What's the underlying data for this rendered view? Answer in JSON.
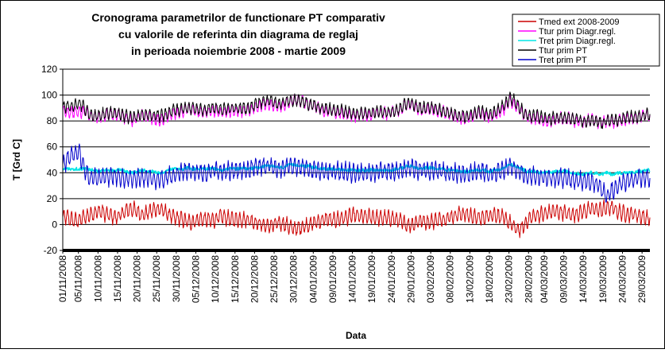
{
  "chart_data": {
    "type": "line",
    "title_lines": [
      "Cronograma parametrilor de functionare PT comparativ",
      "cu valorile de referinta din diagrama de reglaj",
      "in perioada noiembrie 2008 - martie 2009"
    ],
    "xlabel": "Data",
    "ylabel": "T [Grd C]",
    "ylim": [
      -20,
      120
    ],
    "yticks": [
      "120",
      "100",
      "80",
      "60",
      "40",
      "20",
      "0",
      "-20"
    ],
    "ytick_values": [
      120,
      100,
      80,
      60,
      40,
      20,
      0,
      -20
    ],
    "gridlines": [
      0,
      20,
      40,
      60,
      80,
      100,
      120
    ],
    "xticks": [
      "01/11/2008",
      "05/11/2008",
      "10/11/2008",
      "15/11/2008",
      "20/11/2008",
      "25/11/2008",
      "30/11/2008",
      "05/12/2008",
      "10/12/2008",
      "15/12/2008",
      "20/12/2008",
      "25/12/2008",
      "30/12/2008",
      "04/01/2009",
      "09/01/2009",
      "14/01/2009",
      "19/01/2009",
      "24/01/2009",
      "29/01/2009",
      "03/02/2009",
      "08/02/2009",
      "13/02/2009",
      "18/02/2009",
      "23/02/2009",
      "28/02/2009",
      "04/03/2009",
      "09/03/2009",
      "14/03/2009",
      "19/03/2009",
      "24/03/2009",
      "29/03/2009"
    ],
    "xtick_days": [
      0,
      4,
      9,
      14,
      19,
      24,
      29,
      34,
      39,
      44,
      49,
      54,
      59,
      64,
      69,
      74,
      79,
      84,
      89,
      94,
      99,
      104,
      109,
      114,
      119,
      123,
      128,
      133,
      138,
      143,
      148
    ],
    "day_count": 151,
    "legend_position": "top-right",
    "series": [
      {
        "name": "Tmed ext 2008-2009",
        "color": "#cc0000",
        "daily_avg": [
          5,
          6,
          4,
          3,
          3,
          5,
          6,
          8,
          9,
          10,
          10,
          8,
          7,
          6,
          6,
          8,
          10,
          12,
          12,
          10,
          8,
          8,
          10,
          11,
          12,
          12,
          10,
          8,
          6,
          5,
          5,
          3,
          2,
          2,
          3,
          4,
          4,
          4,
          3,
          4,
          6,
          6,
          5,
          4,
          4,
          4,
          4,
          4,
          3,
          2,
          1,
          0,
          -1,
          -1,
          0,
          1,
          1,
          0,
          -2,
          -3,
          -3,
          -2,
          -1,
          0,
          1,
          2,
          3,
          4,
          4,
          3,
          4,
          5,
          5,
          6,
          7,
          7,
          6,
          6,
          6,
          6,
          5,
          5,
          5,
          5,
          5,
          4,
          3,
          1,
          0,
          0,
          1,
          3,
          3,
          2,
          2,
          3,
          4,
          4,
          5,
          6,
          7,
          8,
          8,
          8,
          7,
          6,
          5,
          5,
          6,
          7,
          8,
          7,
          6,
          4,
          2,
          -1,
          -4,
          -4,
          0,
          4,
          6,
          7,
          8,
          8,
          9,
          10,
          10,
          10,
          9,
          8,
          8,
          8,
          9,
          10,
          11,
          12,
          12,
          11,
          12,
          13,
          13,
          12,
          10,
          9,
          8,
          8,
          8,
          7,
          6,
          5,
          5
        ]
      },
      {
        "name": "Ttur prim Diagr.regl.",
        "color": "#ff00ff",
        "daily_avg": [
          87,
          87,
          87,
          87,
          87,
          87,
          87,
          84,
          84,
          83,
          84,
          85,
          85,
          85,
          85,
          84,
          82,
          81,
          81,
          82,
          84,
          84,
          83,
          82,
          81,
          81,
          82,
          84,
          86,
          86,
          87,
          88,
          89,
          88,
          87,
          87,
          87,
          87,
          88,
          88,
          86,
          86,
          87,
          88,
          88,
          88,
          88,
          88,
          89,
          90,
          91,
          93,
          93,
          93,
          92,
          91,
          92,
          93,
          95,
          96,
          96,
          95,
          94,
          92,
          91,
          90,
          89,
          88,
          87,
          88,
          87,
          86,
          86,
          85,
          84,
          84,
          85,
          85,
          84,
          85,
          86,
          86,
          86,
          86,
          86,
          87,
          88,
          91,
          93,
          93,
          91,
          89,
          88,
          89,
          90,
          88,
          87,
          87,
          86,
          85,
          84,
          83,
          82,
          82,
          83,
          84,
          86,
          85,
          84,
          83,
          84,
          86,
          88,
          90,
          95,
          95,
          91,
          87,
          84,
          83,
          82,
          82,
          81,
          80,
          80,
          80,
          81,
          82,
          82,
          82,
          81,
          80,
          79,
          79,
          80,
          81,
          80,
          79,
          79,
          80,
          79,
          79,
          80,
          81,
          82,
          82,
          82,
          83,
          84,
          85,
          85
        ]
      },
      {
        "name": "Tret prim Diagr.regl.",
        "color": "#00e5e5",
        "daily_avg": [
          43,
          43,
          43,
          43,
          43,
          43,
          43,
          42,
          42,
          41,
          42,
          42,
          42,
          42,
          42,
          42,
          41,
          40,
          40,
          41,
          42,
          42,
          41,
          41,
          40,
          40,
          41,
          42,
          43,
          43,
          43,
          43,
          44,
          43,
          43,
          43,
          43,
          43,
          43,
          43,
          42,
          42,
          43,
          43,
          43,
          43,
          43,
          43,
          43,
          44,
          44,
          45,
          45,
          45,
          45,
          44,
          44,
          45,
          46,
          46,
          46,
          46,
          45,
          45,
          44,
          44,
          43,
          43,
          43,
          43,
          43,
          42,
          42,
          42,
          42,
          42,
          42,
          42,
          42,
          42,
          42,
          42,
          42,
          42,
          42,
          43,
          43,
          44,
          45,
          45,
          44,
          43,
          43,
          44,
          44,
          43,
          43,
          43,
          42,
          42,
          42,
          41,
          41,
          41,
          41,
          42,
          42,
          42,
          42,
          41,
          42,
          42,
          43,
          44,
          46,
          46,
          44,
          43,
          42,
          41,
          41,
          41,
          40,
          40,
          40,
          40,
          41,
          41,
          41,
          41,
          40,
          40,
          39,
          39,
          40,
          40,
          40,
          39,
          39,
          40,
          39,
          39,
          40,
          40,
          40,
          40,
          40,
          41,
          41,
          42,
          42
        ]
      },
      {
        "name": "Ttur prim PT",
        "color": "#000000",
        "daily_avg": [
          90,
          92,
          91,
          92,
          94,
          92,
          88,
          85,
          84,
          84,
          85,
          86,
          86,
          86,
          86,
          85,
          84,
          83,
          83,
          84,
          85,
          85,
          85,
          84,
          84,
          84,
          85,
          86,
          88,
          88,
          89,
          90,
          90,
          90,
          89,
          89,
          89,
          89,
          90,
          90,
          89,
          89,
          89,
          90,
          90,
          90,
          90,
          90,
          91,
          92,
          93,
          95,
          95,
          96,
          95,
          94,
          94,
          95,
          96,
          96,
          96,
          95,
          94,
          93,
          92,
          91,
          90,
          89,
          89,
          89,
          88,
          88,
          87,
          87,
          86,
          86,
          86,
          86,
          86,
          86,
          87,
          87,
          87,
          87,
          87,
          88,
          89,
          92,
          94,
          94,
          92,
          90,
          90,
          90,
          91,
          90,
          89,
          88,
          87,
          86,
          85,
          84,
          84,
          84,
          84,
          85,
          87,
          87,
          86,
          85,
          86,
          88,
          90,
          93,
          97,
          97,
          93,
          89,
          86,
          85,
          84,
          84,
          83,
          82,
          82,
          82,
          83,
          83,
          83,
          83,
          82,
          82,
          81,
          80,
          80,
          80,
          80,
          79,
          78,
          80,
          81,
          81,
          81,
          82,
          83,
          83,
          83,
          84,
          84,
          85,
          85
        ]
      },
      {
        "name": "Tret prim PT",
        "color": "#0000cc",
        "daily_avg": [
          45,
          50,
          52,
          55,
          58,
          48,
          40,
          36,
          36,
          35,
          36,
          37,
          37,
          37,
          37,
          36,
          35,
          35,
          35,
          36,
          36,
          36,
          36,
          35,
          35,
          35,
          36,
          37,
          38,
          39,
          40,
          41,
          42,
          41,
          41,
          40,
          40,
          40,
          41,
          42,
          41,
          41,
          41,
          42,
          42,
          42,
          42,
          42,
          43,
          44,
          44,
          45,
          45,
          45,
          44,
          43,
          43,
          44,
          45,
          45,
          45,
          45,
          44,
          43,
          43,
          42,
          42,
          42,
          41,
          42,
          41,
          41,
          41,
          40,
          40,
          40,
          40,
          40,
          40,
          40,
          41,
          41,
          41,
          41,
          41,
          41,
          41,
          43,
          44,
          44,
          43,
          42,
          42,
          42,
          42,
          42,
          41,
          41,
          40,
          40,
          40,
          39,
          39,
          39,
          39,
          40,
          41,
          41,
          40,
          39,
          40,
          41,
          42,
          43,
          44,
          44,
          42,
          41,
          39,
          38,
          38,
          37,
          37,
          36,
          36,
          36,
          36,
          36,
          36,
          36,
          35,
          35,
          34,
          34,
          33,
          33,
          32,
          30,
          25,
          22,
          25,
          28,
          30,
          32,
          33,
          34,
          35,
          36,
          36,
          37,
          36
        ]
      }
    ]
  }
}
